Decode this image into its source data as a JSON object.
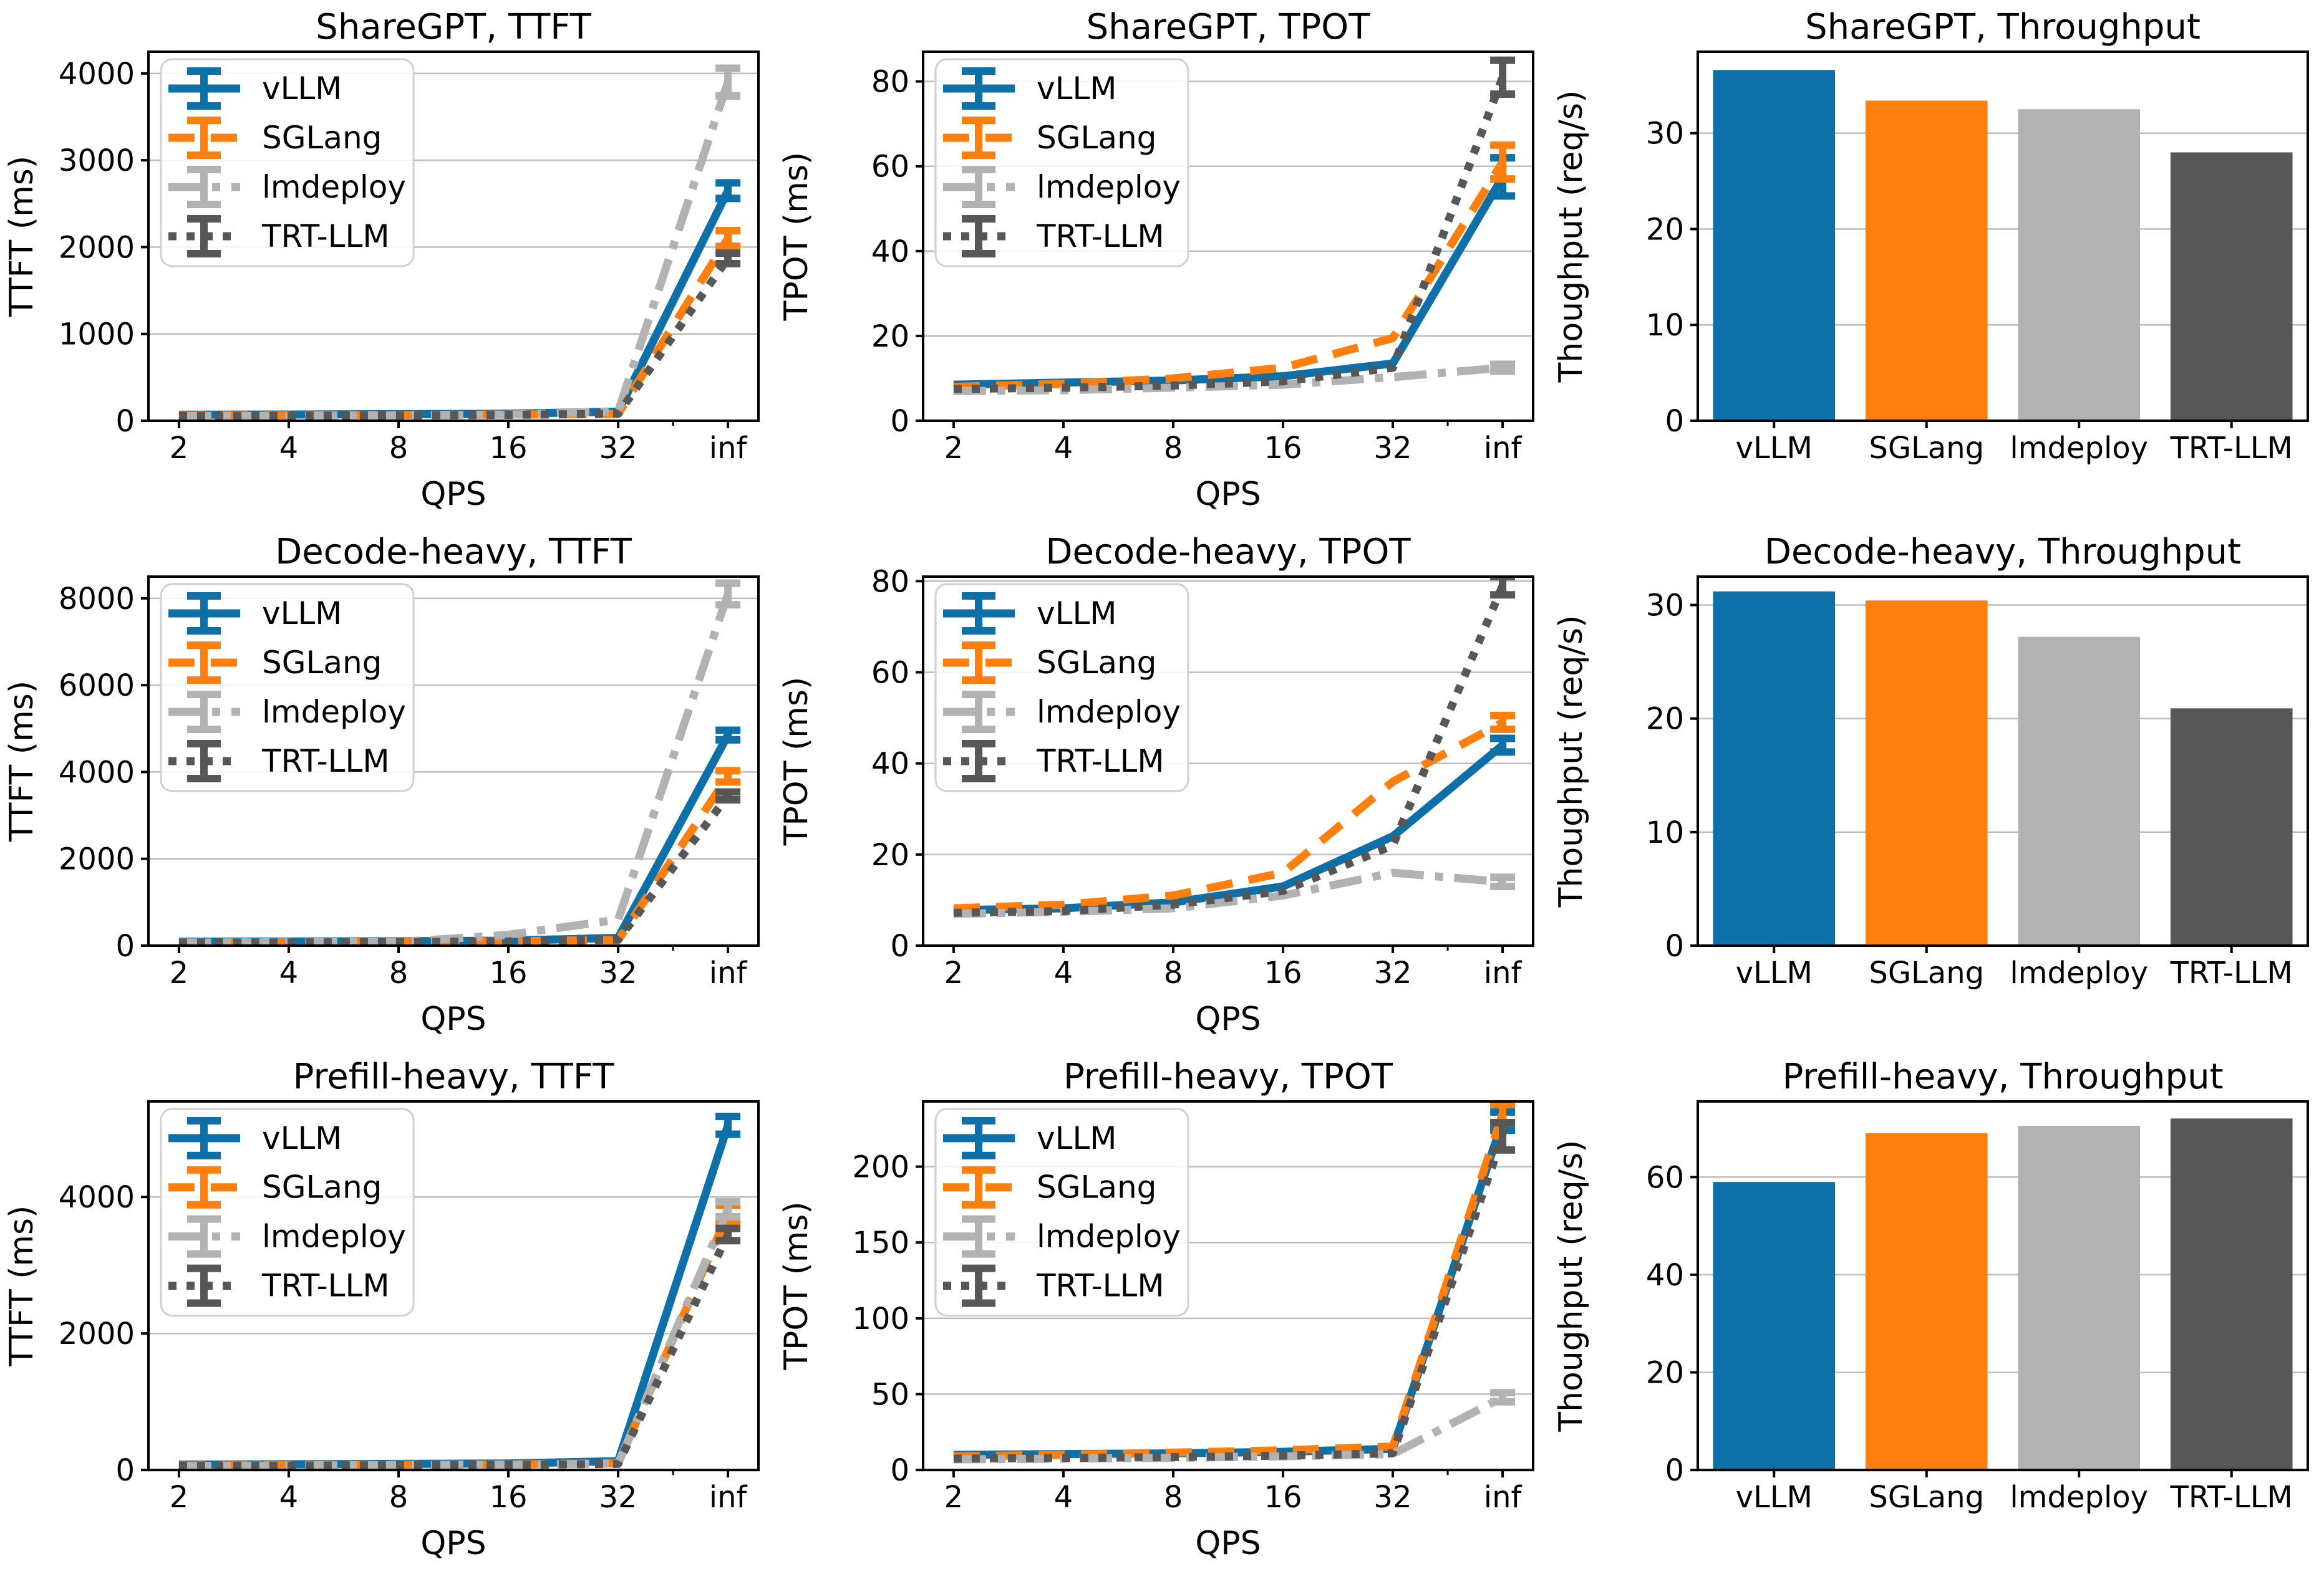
{
  "figure": {
    "background": "#ffffff",
    "rows": [
      "ShareGPT",
      "Decode-heavy",
      "Prefill-heavy"
    ],
    "columns": [
      "TTFT",
      "TPOT",
      "Throughput"
    ]
  },
  "series_meta": [
    {
      "name": "vLLM",
      "color": "#0e70a8",
      "linestyle": "solid"
    },
    {
      "name": "SGLang",
      "color": "#ff7f0e",
      "linestyle": "dashed"
    },
    {
      "name": "lmdeploy",
      "color": "#b2b2b2",
      "linestyle": "dashdot"
    },
    {
      "name": "TRT-LLM",
      "color": "#575757",
      "linestyle": "dotted"
    }
  ],
  "style": {
    "grid_color": "#bdbdbd",
    "spine_color": "#000000",
    "legend_border": "#d0d0d0",
    "legend_bg": "#ffffff"
  },
  "chart_data": [
    {
      "type": "line",
      "title": "ShareGPT, TTFT",
      "xlabel": "QPS",
      "ylabel": "TTFT (ms)",
      "categories": [
        "2",
        "4",
        "8",
        "16",
        "32",
        "inf"
      ],
      "yticks": [
        0,
        1000,
        2000,
        3000,
        4000
      ],
      "ylim": [
        0,
        4250
      ],
      "legend": true,
      "grid": true,
      "series": [
        {
          "name": "vLLM",
          "values": [
            70,
            72,
            76,
            82,
            105,
            2650
          ],
          "err_last": 90
        },
        {
          "name": "SGLang",
          "values": [
            60,
            63,
            66,
            72,
            80,
            2100
          ],
          "err_last": 90
        },
        {
          "name": "lmdeploy",
          "values": [
            55,
            58,
            62,
            70,
            110,
            3900
          ],
          "err_last": 160
        },
        {
          "name": "TRT-LLM",
          "values": [
            55,
            58,
            62,
            68,
            80,
            1870
          ],
          "err_last": 60
        }
      ]
    },
    {
      "type": "line",
      "title": "ShareGPT, TPOT",
      "xlabel": "QPS",
      "ylabel": "TPOT (ms)",
      "categories": [
        "2",
        "4",
        "8",
        "16",
        "32",
        "inf"
      ],
      "yticks": [
        0,
        20,
        40,
        60,
        80
      ],
      "ylim": [
        0,
        87
      ],
      "legend": true,
      "grid": true,
      "series": [
        {
          "name": "vLLM",
          "values": [
            8.5,
            9,
            9.5,
            10.5,
            13.5,
            57.5
          ],
          "err_last": 4.5
        },
        {
          "name": "SGLang",
          "values": [
            8,
            8.7,
            10,
            12.5,
            19.5,
            61
          ],
          "err_last": 4
        },
        {
          "name": "lmdeploy",
          "values": [
            7,
            7.2,
            7.8,
            8.5,
            10.3,
            12.5
          ],
          "err_last": 0.8
        },
        {
          "name": "TRT-LLM",
          "values": [
            7.5,
            7.8,
            8.3,
            9.3,
            12.5,
            81
          ],
          "err_last": 4
        }
      ]
    },
    {
      "type": "bar",
      "title": "ShareGPT, Throughput",
      "xlabel": "",
      "ylabel": "Thoughput (req/s)",
      "categories": [
        "vLLM",
        "SGLang",
        "lmdeploy",
        "TRT-LLM"
      ],
      "values": [
        36.6,
        33.4,
        32.5,
        28.0
      ],
      "yticks": [
        0,
        10,
        20,
        30
      ],
      "ylim": [
        0,
        38.5
      ],
      "legend": false,
      "grid": true
    },
    {
      "type": "line",
      "title": "Decode-heavy, TTFT",
      "xlabel": "QPS",
      "ylabel": "TTFT (ms)",
      "categories": [
        "2",
        "4",
        "8",
        "16",
        "32",
        "inf"
      ],
      "yticks": [
        0,
        2000,
        4000,
        6000,
        8000
      ],
      "ylim": [
        0,
        8500
      ],
      "legend": true,
      "grid": true,
      "series": [
        {
          "name": "vLLM",
          "values": [
            90,
            95,
            100,
            115,
            180,
            4850
          ],
          "err_last": 110
        },
        {
          "name": "SGLang",
          "values": [
            75,
            80,
            88,
            100,
            130,
            3900
          ],
          "err_last": 130
        },
        {
          "name": "lmdeploy",
          "values": [
            70,
            76,
            85,
            250,
            600,
            8100
          ],
          "err_last": 250
        },
        {
          "name": "TRT-LLM",
          "values": [
            70,
            75,
            82,
            95,
            140,
            3450
          ],
          "err_last": 90
        }
      ]
    },
    {
      "type": "line",
      "title": "Decode-heavy, TPOT",
      "xlabel": "QPS",
      "ylabel": "TPOT (ms)",
      "categories": [
        "2",
        "4",
        "8",
        "16",
        "32",
        "inf"
      ],
      "yticks": [
        0,
        20,
        40,
        60,
        80
      ],
      "ylim": [
        0,
        81
      ],
      "legend": true,
      "grid": true,
      "series": [
        {
          "name": "vLLM",
          "values": [
            7.8,
            8.2,
            9.5,
            13,
            24,
            44
          ],
          "err_last": 1.5
        },
        {
          "name": "SGLang",
          "values": [
            8.2,
            9,
            11,
            16,
            36,
            49
          ],
          "err_last": 1.5
        },
        {
          "name": "lmdeploy",
          "values": [
            7,
            7.4,
            8.2,
            11,
            16,
            14
          ],
          "err_last": 1
        },
        {
          "name": "TRT-LLM",
          "values": [
            7.2,
            7.6,
            9,
            12,
            22,
            79
          ],
          "err_last": 2
        }
      ]
    },
    {
      "type": "bar",
      "title": "Decode-heavy, Throughput",
      "xlabel": "",
      "ylabel": "Thoughput (req/s)",
      "categories": [
        "vLLM",
        "SGLang",
        "lmdeploy",
        "TRT-LLM"
      ],
      "values": [
        31.2,
        30.4,
        27.2,
        20.9
      ],
      "yticks": [
        0,
        10,
        20,
        30
      ],
      "ylim": [
        0,
        32.5
      ],
      "legend": false,
      "grid": true
    },
    {
      "type": "line",
      "title": "Prefill-heavy, TTFT",
      "xlabel": "QPS",
      "ylabel": "TTFT (ms)",
      "categories": [
        "2",
        "4",
        "8",
        "16",
        "32",
        "inf"
      ],
      "yticks": [
        0,
        2000,
        4000
      ],
      "ylim": [
        0,
        5400
      ],
      "legend": true,
      "grid": true,
      "series": [
        {
          "name": "vLLM",
          "values": [
            80,
            84,
            90,
            96,
            130,
            5050
          ],
          "err_last": 130
        },
        {
          "name": "SGLang",
          "values": [
            65,
            70,
            76,
            82,
            100,
            3750
          ],
          "err_last": 130
        },
        {
          "name": "lmdeploy",
          "values": [
            60,
            66,
            72,
            78,
            95,
            3820
          ],
          "err_last": 110
        },
        {
          "name": "TRT-LLM",
          "values": [
            60,
            64,
            70,
            76,
            90,
            3450
          ],
          "err_last": 90
        }
      ]
    },
    {
      "type": "line",
      "title": "Prefill-heavy, TPOT",
      "xlabel": "QPS",
      "ylabel": "TPOT (ms)",
      "categories": [
        "2",
        "4",
        "8",
        "16",
        "32",
        "inf"
      ],
      "yticks": [
        0,
        50,
        100,
        150,
        200
      ],
      "ylim": [
        0,
        243
      ],
      "legend": true,
      "grid": true,
      "series": [
        {
          "name": "vLLM",
          "values": [
            10,
            10.5,
            11,
            12,
            14,
            230
          ],
          "err_last": 6
        },
        {
          "name": "SGLang",
          "values": [
            9,
            10,
            11.5,
            13,
            15.5,
            235
          ],
          "err_last": 6
        },
        {
          "name": "lmdeploy",
          "values": [
            7,
            7.5,
            8,
            9,
            10.5,
            48
          ],
          "err_last": 3
        },
        {
          "name": "TRT-LLM",
          "values": [
            7.5,
            8,
            8.5,
            9.5,
            11,
            220
          ],
          "err_last": 9
        }
      ]
    },
    {
      "type": "bar",
      "title": "Prefill-heavy, Throughput",
      "xlabel": "",
      "ylabel": "Thoughput (req/s)",
      "categories": [
        "vLLM",
        "SGLang",
        "lmdeploy",
        "TRT-LLM"
      ],
      "values": [
        59,
        69,
        70.5,
        72
      ],
      "yticks": [
        0,
        20,
        40,
        60
      ],
      "ylim": [
        0,
        75.5
      ],
      "legend": false,
      "grid": true
    }
  ]
}
